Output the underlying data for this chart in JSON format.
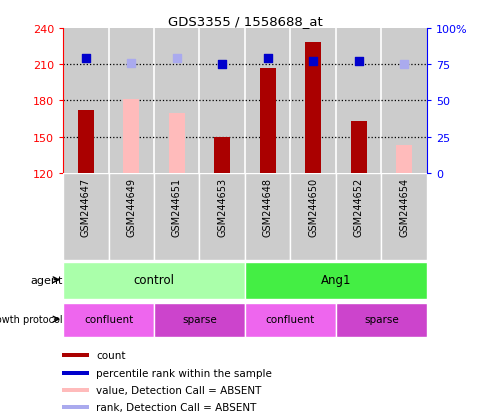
{
  "title": "GDS3355 / 1558688_at",
  "samples": [
    "GSM244647",
    "GSM244649",
    "GSM244651",
    "GSM244653",
    "GSM244648",
    "GSM244650",
    "GSM244652",
    "GSM244654"
  ],
  "ylim_left": [
    120,
    240
  ],
  "ylim_right": [
    0,
    100
  ],
  "yticks_left": [
    120,
    150,
    180,
    210,
    240
  ],
  "yticks_right": [
    0,
    25,
    50,
    75,
    100
  ],
  "bar_values": [
    172,
    null,
    null,
    150,
    207,
    228,
    163,
    null
  ],
  "absent_bar_values": [
    null,
    181,
    170,
    null,
    null,
    null,
    null,
    143
  ],
  "absent_bar_color": "#ffbbbb",
  "rank_dots_dark": [
    215,
    null,
    null,
    210,
    215,
    213,
    213,
    null
  ],
  "rank_dots_absent": [
    null,
    211,
    215,
    null,
    null,
    null,
    null,
    210
  ],
  "rank_dot_color_dark": "#0000cc",
  "rank_dot_color_absent": "#aaaaee",
  "dot_size": 35,
  "gridline_values": [
    210,
    180,
    150
  ],
  "agent_groups": [
    {
      "label": "control",
      "span": [
        0,
        4
      ],
      "color": "#aaffaa"
    },
    {
      "label": "Ang1",
      "span": [
        4,
        8
      ],
      "color": "#44ee44"
    }
  ],
  "growth_groups": [
    {
      "label": "confluent",
      "span": [
        0,
        2
      ],
      "color": "#ee66ee"
    },
    {
      "label": "sparse",
      "span": [
        2,
        4
      ],
      "color": "#cc44cc"
    },
    {
      "label": "confluent",
      "span": [
        4,
        6
      ],
      "color": "#ee66ee"
    },
    {
      "label": "sparse",
      "span": [
        6,
        8
      ],
      "color": "#cc44cc"
    }
  ],
  "legend_items": [
    {
      "label": "count",
      "color": "#aa0000"
    },
    {
      "label": "percentile rank within the sample",
      "color": "#0000cc"
    },
    {
      "label": "value, Detection Call = ABSENT",
      "color": "#ffbbbb"
    },
    {
      "label": "rank, Detection Call = ABSENT",
      "color": "#aaaaee"
    }
  ],
  "bar_width": 0.35,
  "background_color": "#ffffff",
  "sample_bg": "#cccccc",
  "dark_bar_color": "#aa0000"
}
